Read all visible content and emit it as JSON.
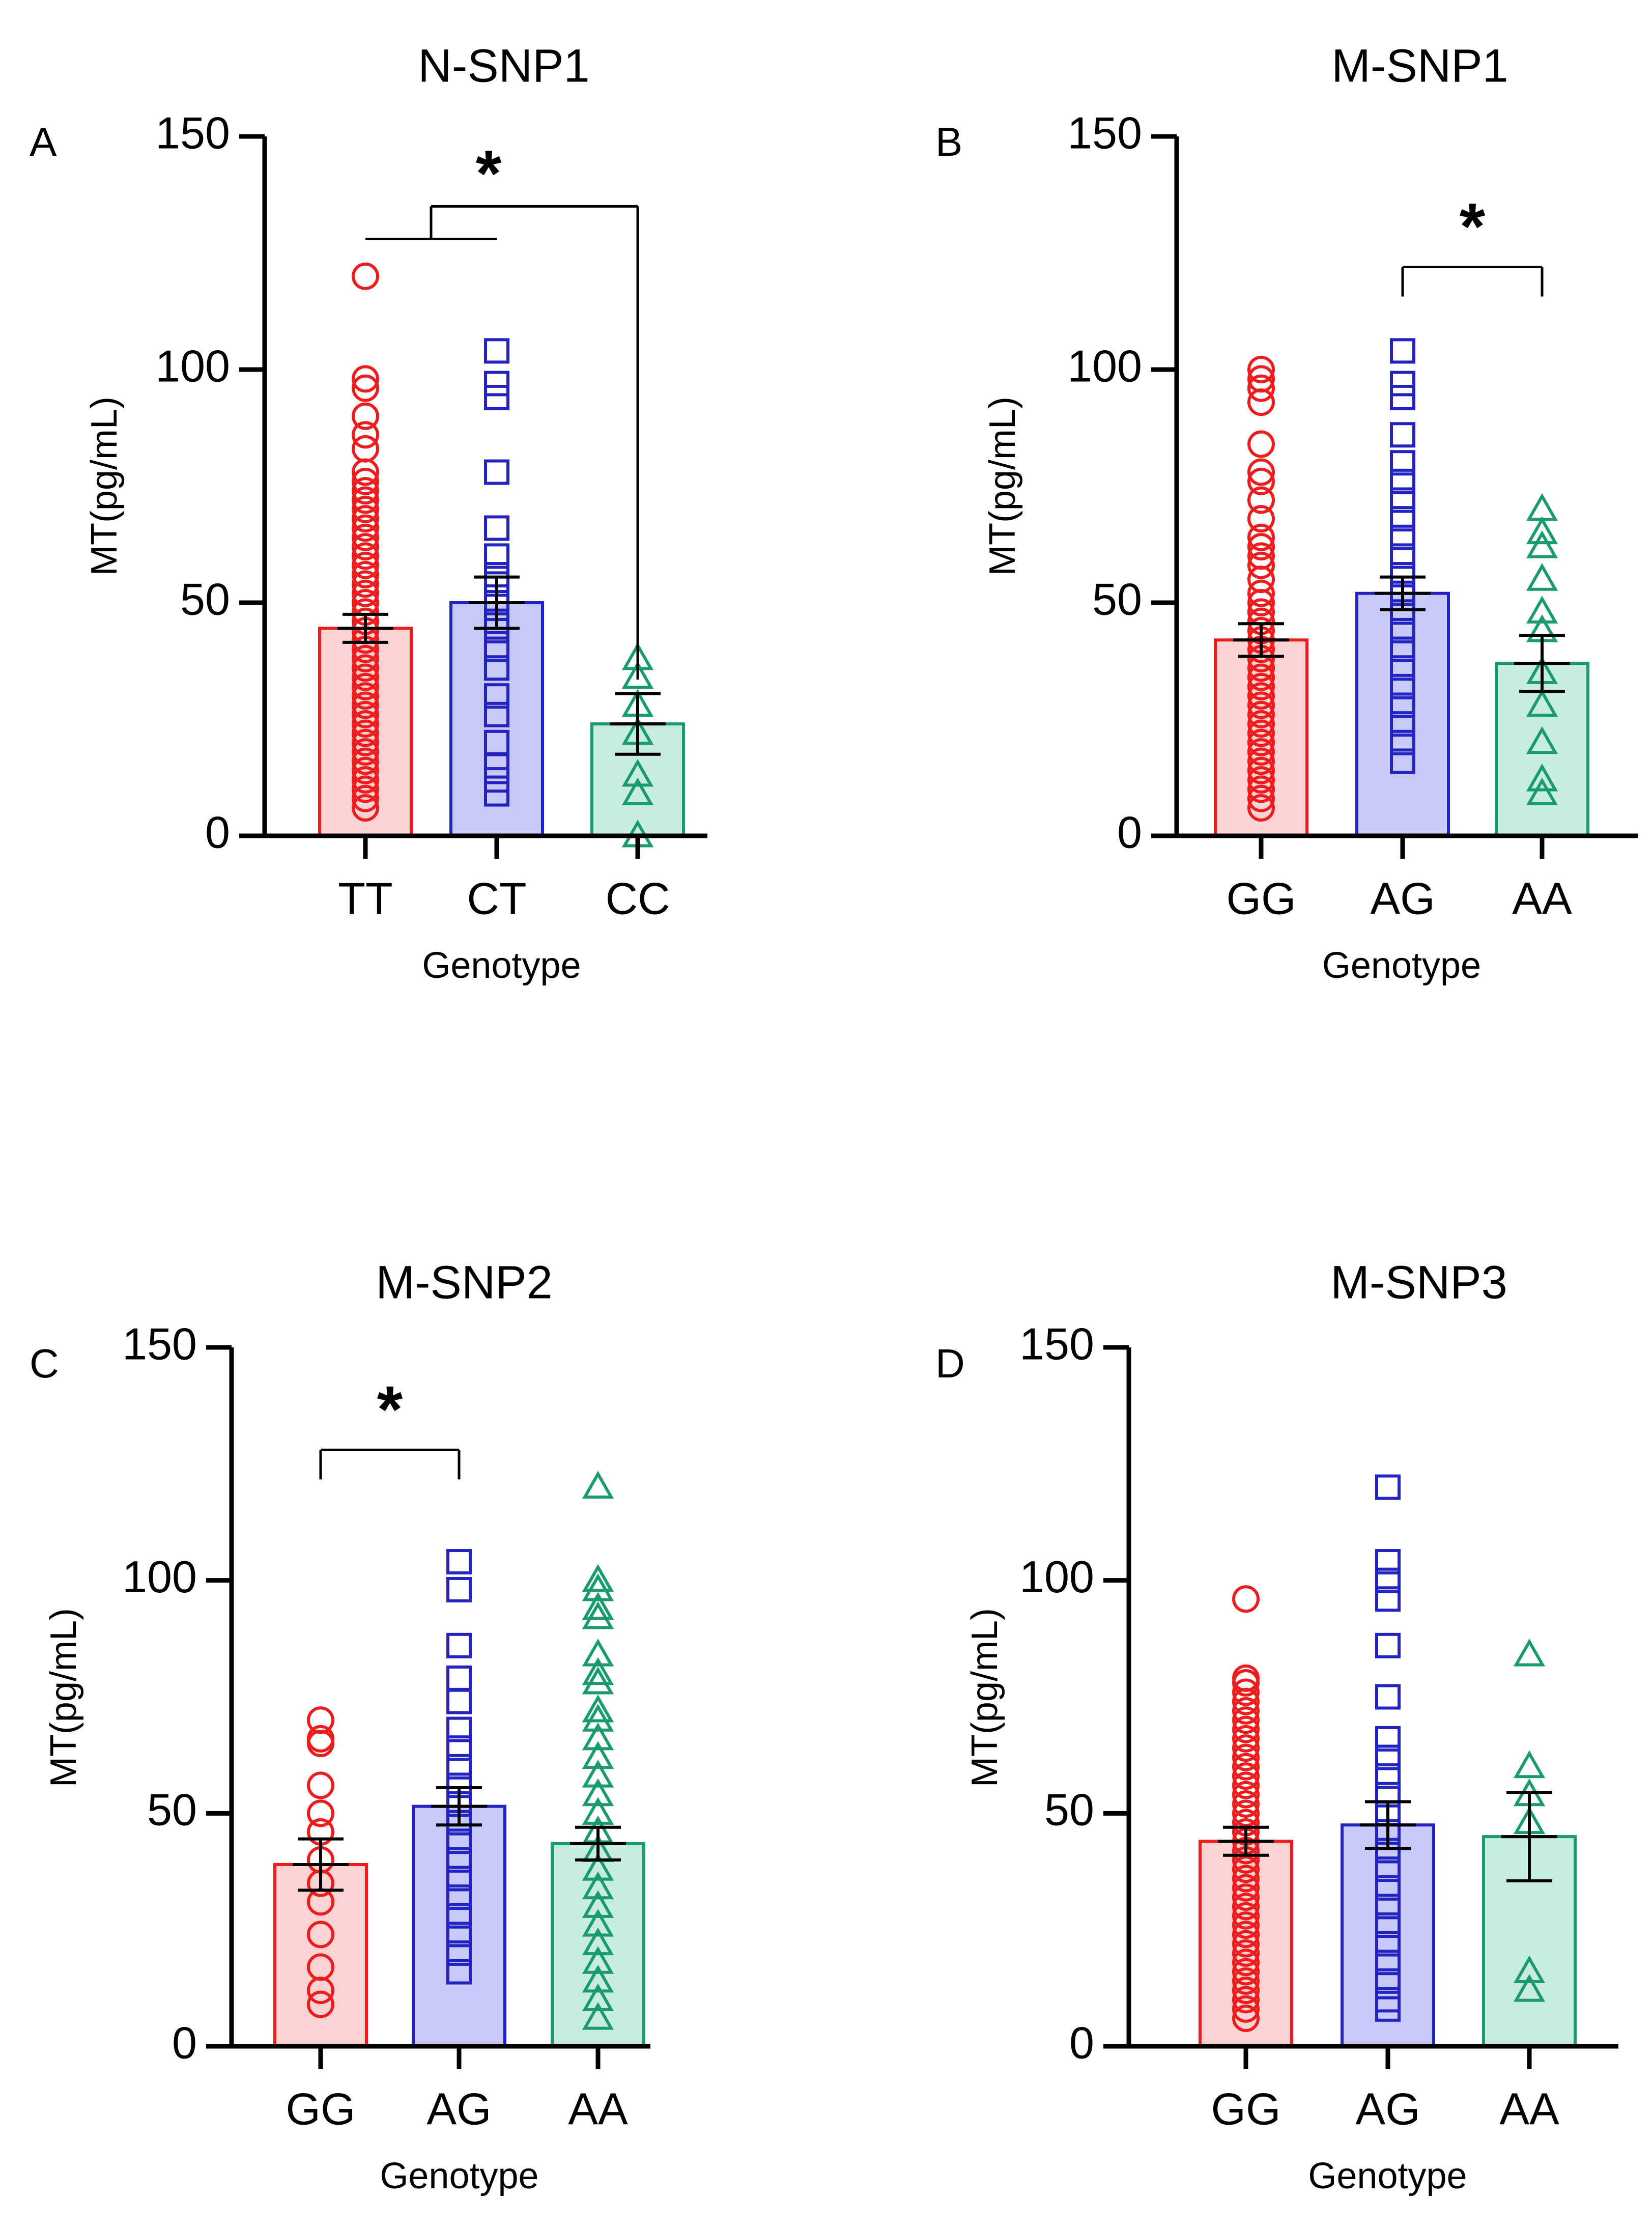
{
  "figure": {
    "background": "#ffffff"
  },
  "colors": {
    "red": "#ee1c1c",
    "red_fill": "#fad4d4",
    "blue": "#2323c4",
    "blue_fill": "#c9c9f7",
    "green": "#1a9a6f",
    "green_fill": "#c8ecdf"
  },
  "chart_data": [
    {
      "type": "bar",
      "panel_letter": "A",
      "title": "N-SNP1",
      "xlabel": "Genotype",
      "ylabel": "MT(pg/mL)",
      "ylim": [
        0,
        150
      ],
      "yticks": [
        0,
        50,
        100,
        150
      ],
      "categories": [
        "TT",
        "CT",
        "CC"
      ],
      "values": [
        44.5,
        50,
        24
      ],
      "sem": [
        3,
        5.5,
        6.5
      ],
      "markers": [
        "circle",
        "square",
        "triangle"
      ],
      "colors": [
        "#ee1c1c",
        "#2323c4",
        "#1a9a6f"
      ],
      "fill_colors": [
        "#fad4d4",
        "#c9c9f7",
        "#c8ecdf"
      ],
      "points": [
        [
          120,
          98,
          96,
          90,
          86,
          83,
          78,
          76,
          74,
          72,
          70,
          68,
          66,
          64,
          62,
          60,
          58,
          56,
          54,
          52,
          50,
          48,
          46,
          44,
          42,
          40,
          38,
          36,
          34,
          32,
          30,
          28,
          26,
          24,
          22,
          20,
          18,
          16,
          14,
          12,
          10,
          8,
          6
        ],
        [
          104,
          97,
          94,
          78,
          66,
          60,
          56,
          54,
          50,
          46,
          44,
          40,
          36,
          30,
          26,
          20,
          15,
          12,
          9
        ],
        [
          38,
          34,
          28,
          22,
          13,
          9,
          0
        ]
      ],
      "significance": {
        "type": "grouped",
        "left": [
          0,
          1
        ],
        "right": 2,
        "label": "*",
        "y_low": 128,
        "y_high": 135
      }
    },
    {
      "type": "bar",
      "panel_letter": "B",
      "title": "M-SNP1",
      "xlabel": "Genotype",
      "ylabel": "MT(pg/mL)",
      "ylim": [
        0,
        150
      ],
      "yticks": [
        0,
        50,
        100,
        150
      ],
      "categories": [
        "GG",
        "AG",
        "AA"
      ],
      "values": [
        42,
        52,
        37
      ],
      "sem": [
        3.5,
        3.5,
        6
      ],
      "markers": [
        "circle",
        "square",
        "triangle"
      ],
      "colors": [
        "#ee1c1c",
        "#2323c4",
        "#1a9a6f"
      ],
      "fill_colors": [
        "#fad4d4",
        "#c9c9f7",
        "#c8ecdf"
      ],
      "points": [
        [
          100,
          98,
          96,
          93,
          84,
          78,
          76,
          72,
          68,
          64,
          62,
          60,
          58,
          55,
          52,
          50,
          48,
          46,
          44,
          42,
          40,
          38,
          36,
          34,
          32,
          30,
          28,
          26,
          24,
          22,
          20,
          18,
          16,
          14,
          12,
          10,
          8,
          6
        ],
        [
          104,
          97,
          94,
          86,
          80,
          76,
          72,
          68,
          64,
          60,
          56,
          52,
          48,
          44,
          40,
          36,
          32,
          28,
          24,
          20,
          16
        ],
        [
          70,
          65,
          62,
          55,
          48,
          44,
          35,
          28,
          20,
          12,
          9
        ]
      ],
      "significance": {
        "type": "pair",
        "left": 1,
        "right": 2,
        "label": "*",
        "y_low": 122,
        "y_high": 122
      }
    },
    {
      "type": "bar",
      "panel_letter": "C",
      "title": "M-SNP2",
      "xlabel": "Genotype",
      "ylabel": "MT(pg/mL)",
      "ylim": [
        0,
        150
      ],
      "yticks": [
        0,
        50,
        100,
        150
      ],
      "categories": [
        "GG",
        "AG",
        "AA"
      ],
      "values": [
        39,
        51.5,
        43.5
      ],
      "sem": [
        5.5,
        4,
        3.5
      ],
      "markers": [
        "circle",
        "square",
        "triangle"
      ],
      "colors": [
        "#ee1c1c",
        "#2323c4",
        "#1a9a6f"
      ],
      "fill_colors": [
        "#fad4d4",
        "#c9c9f7",
        "#c8ecdf"
      ],
      "points": [
        [
          70,
          66,
          65,
          56,
          50,
          46,
          40,
          35,
          31,
          24,
          17,
          12,
          9
        ],
        [
          104,
          98,
          86,
          79,
          74,
          68,
          64,
          60,
          56,
          52,
          48,
          44,
          40,
          36,
          32,
          28,
          24,
          20,
          16
        ],
        [
          120,
          100,
          98,
          94,
          92,
          84,
          80,
          78,
          72,
          70,
          66,
          62,
          58,
          54,
          50,
          46,
          42,
          38,
          34,
          30,
          26,
          22,
          18,
          14,
          10,
          6
        ]
      ],
      "significance": {
        "type": "pair",
        "left": 0,
        "right": 1,
        "label": "*",
        "y_low": 128,
        "y_high": 128
      }
    },
    {
      "type": "bar",
      "panel_letter": "D",
      "title": "M-SNP3",
      "xlabel": "Genotype",
      "ylabel": "MT(pg/mL)",
      "ylim": [
        0,
        150
      ],
      "yticks": [
        0,
        50,
        100,
        150
      ],
      "categories": [
        "GG",
        "AG",
        "AA"
      ],
      "values": [
        44,
        47.5,
        45
      ],
      "sem": [
        3,
        5,
        9.5
      ],
      "markers": [
        "circle",
        "square",
        "triangle"
      ],
      "colors": [
        "#ee1c1c",
        "#2323c4",
        "#1a9a6f"
      ],
      "fill_colors": [
        "#fad4d4",
        "#c9c9f7",
        "#c8ecdf"
      ],
      "points": [
        [
          96,
          79,
          78,
          76,
          74,
          72,
          70,
          68,
          66,
          64,
          62,
          60,
          58,
          56,
          54,
          52,
          50,
          48,
          46,
          44,
          42,
          40,
          38,
          36,
          34,
          32,
          30,
          28,
          26,
          24,
          22,
          20,
          18,
          16,
          14,
          12,
          10,
          8,
          6
        ],
        [
          120,
          104,
          100,
          96,
          86,
          75,
          66,
          62,
          58,
          54,
          50,
          46,
          42,
          38,
          34,
          30,
          26,
          22,
          18,
          14,
          10,
          8
        ],
        [
          84,
          60,
          54,
          48,
          16,
          12
        ]
      ],
      "significance": null
    }
  ]
}
